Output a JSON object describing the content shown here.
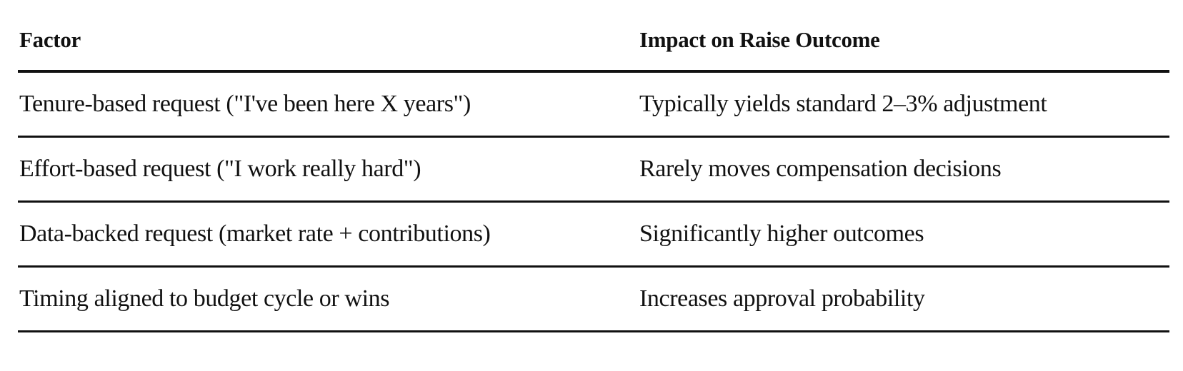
{
  "table": {
    "header": [
      "Factor",
      "Impact on Raise Outcome"
    ],
    "rows": [
      [
        "Tenure-based request (\"I've been here X years\")",
        "Typically yields standard 2–3% adjustment"
      ],
      [
        "Effort-based request (\"I work really hard\")",
        "Rarely moves compensation decisions"
      ],
      [
        "Data-backed request (market rate + contributions)",
        "Significantly higher outcomes"
      ],
      [
        "Timing aligned to budget cycle or wins",
        "Increases approval probability"
      ]
    ]
  }
}
